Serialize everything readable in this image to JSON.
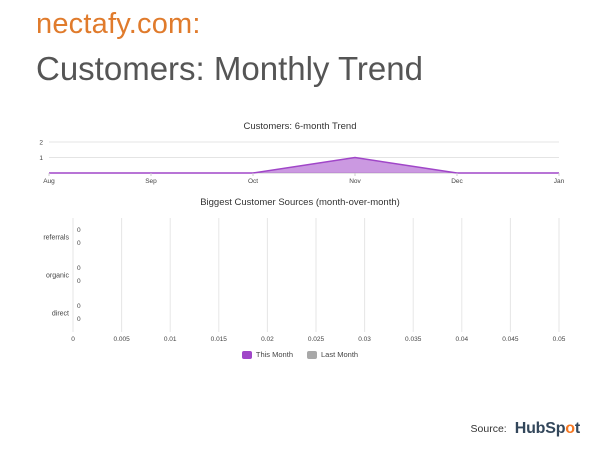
{
  "header": {
    "brand": "nectafy.com:",
    "title": "Customers: Monthly Trend"
  },
  "footer": {
    "source_label": "Source:",
    "logo_text_a": "HubSp",
    "logo_text_b": "o",
    "logo_text_c": "t"
  },
  "colors": {
    "brand": "#e07b2c",
    "this_month": "#a046c8",
    "last_month": "#a8a8a8",
    "hubspot": "#f57722"
  },
  "chart_data": [
    {
      "type": "area",
      "title": "Customers: 6-month Trend",
      "categories": [
        "Aug",
        "Sep",
        "Oct",
        "Nov",
        "Dec",
        "Jan"
      ],
      "series": [
        {
          "values": [
            0,
            0,
            0,
            1,
            0,
            0
          ]
        }
      ],
      "ylim": [
        0,
        2
      ],
      "yticks": [
        "1",
        "2"
      ],
      "grid": true
    },
    {
      "type": "bar",
      "orientation": "horizontal",
      "title": "Biggest Customer Sources (month-over-month)",
      "categories": [
        "referrals",
        "organic",
        "direct"
      ],
      "series": [
        {
          "name": "This Month",
          "values": [
            0,
            0,
            0
          ]
        },
        {
          "name": "Last Month",
          "values": [
            0,
            0,
            0
          ]
        }
      ],
      "xlim": [
        0,
        0.05
      ],
      "xticks": [
        "0",
        "0.005",
        "0.01",
        "0.015",
        "0.02",
        "0.025",
        "0.03",
        "0.035",
        "0.04",
        "0.045",
        "0.05"
      ],
      "value_labels": [
        "0",
        "0"
      ],
      "legend": "bottom-center",
      "grid": true
    }
  ]
}
